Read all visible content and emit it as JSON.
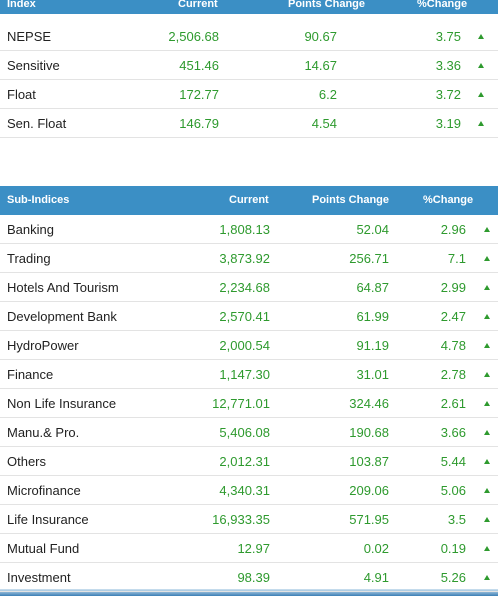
{
  "index_table": {
    "headers": [
      "Index",
      "Current",
      "Points Change",
      "%Change"
    ],
    "rows": [
      [
        "NEPSE",
        "2,506.68",
        "90.67",
        "3.75"
      ],
      [
        "Sensitive",
        "451.46",
        "14.67",
        "3.36"
      ],
      [
        "Float",
        "172.77",
        "6.2",
        "3.72"
      ],
      [
        "Sen. Float",
        "146.79",
        "4.54",
        "3.19"
      ]
    ]
  },
  "sub_indices_table": {
    "headers": [
      "Sub-Indices",
      "Current",
      "Points Change",
      "%Change"
    ],
    "rows": [
      [
        "Banking",
        "1,808.13",
        "52.04",
        "2.96"
      ],
      [
        "Trading",
        "3,873.92",
        "256.71",
        "7.1"
      ],
      [
        "Hotels And Tourism",
        "2,234.68",
        "64.87",
        "2.99"
      ],
      [
        "Development Bank",
        "2,570.41",
        "61.99",
        "2.47"
      ],
      [
        "HydroPower",
        "2,000.54",
        "91.19",
        "4.78"
      ],
      [
        "Finance",
        "1,147.30",
        "31.01",
        "2.78"
      ],
      [
        "Non Life Insurance",
        "12,771.01",
        "324.46",
        "2.61"
      ],
      [
        "Manu.& Pro.",
        "5,406.08",
        "190.68",
        "3.66"
      ],
      [
        "Others",
        "2,012.31",
        "103.87",
        "5.44"
      ],
      [
        "Microfinance",
        "4,340.31",
        "209.06",
        "5.06"
      ],
      [
        "Life Insurance",
        "16,933.35",
        "571.95",
        "3.5"
      ],
      [
        "Mutual Fund",
        "12.97",
        "0.02",
        "0.19"
      ],
      [
        "Investment",
        "98.39",
        "4.91",
        "5.26"
      ]
    ]
  }
}
